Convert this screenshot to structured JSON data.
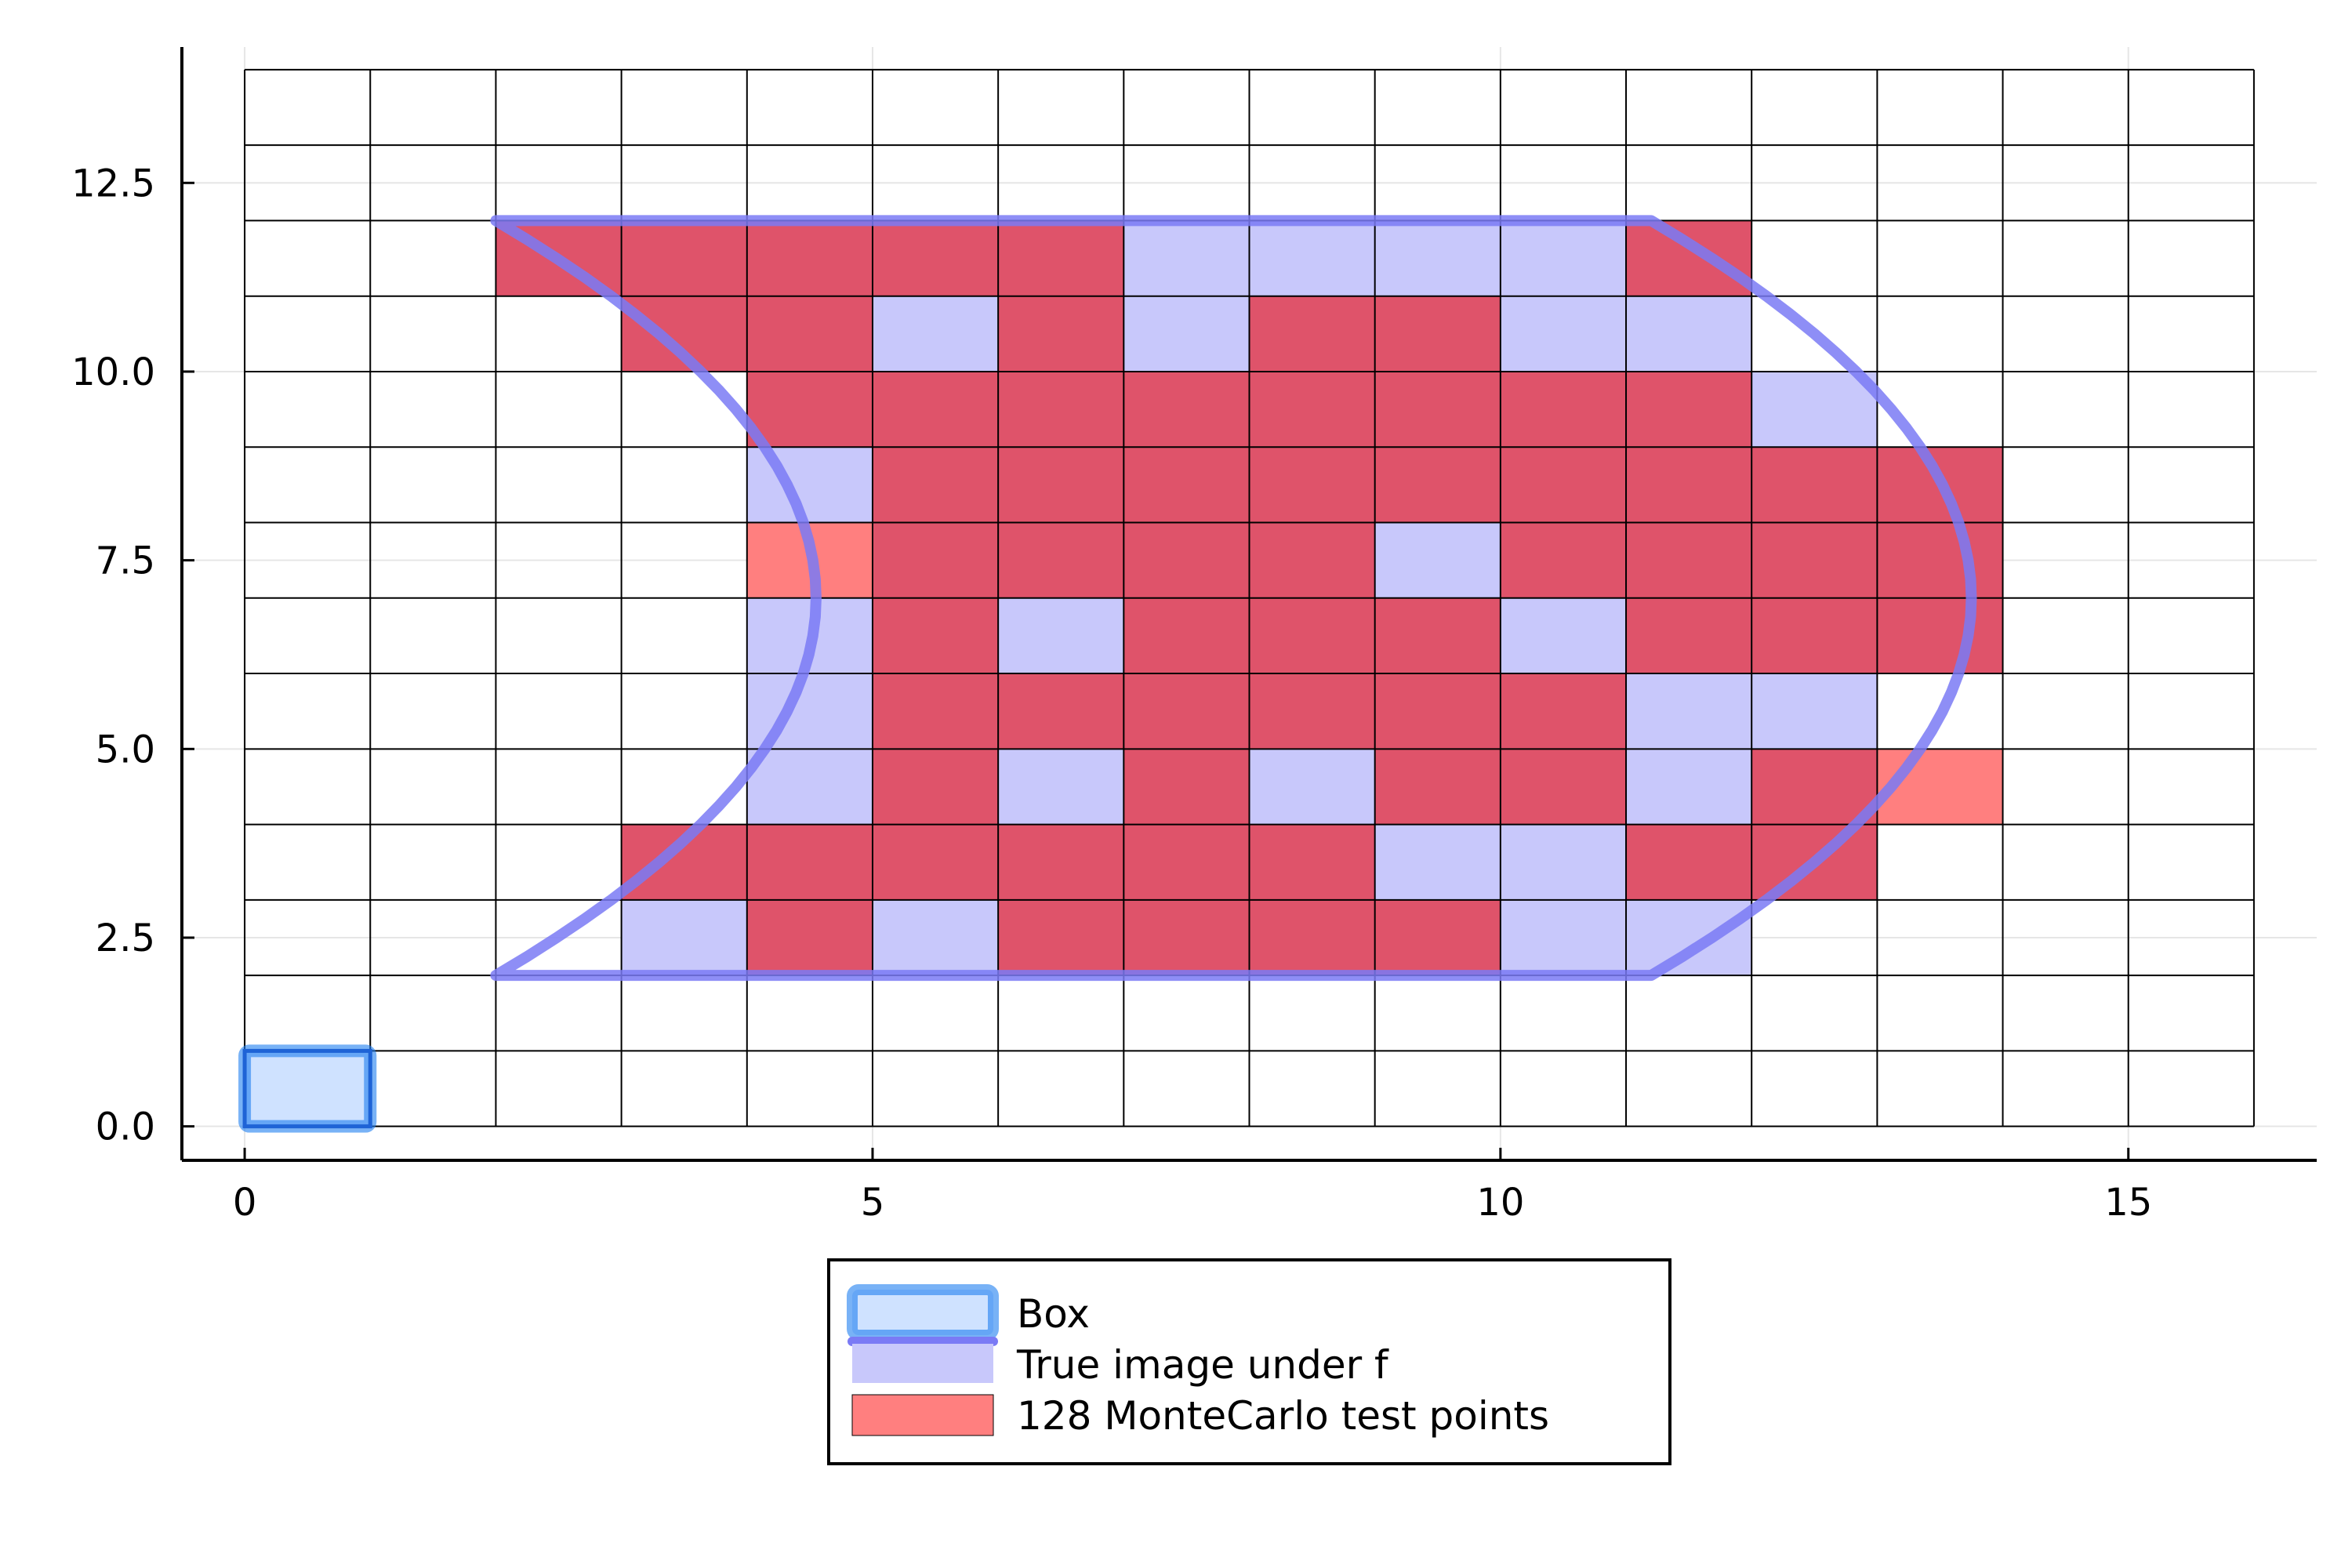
{
  "chart_data": {
    "type": "heatmap",
    "title": "",
    "xlabel": "",
    "ylabel": "",
    "xlim": [
      -0.5,
      16.5
    ],
    "ylim": [
      -0.45,
      14.3
    ],
    "xticks": [
      {
        "value": 0,
        "label": "0"
      },
      {
        "value": 5,
        "label": "5"
      },
      {
        "value": 10,
        "label": "10"
      },
      {
        "value": 15,
        "label": "15"
      }
    ],
    "yticks": [
      {
        "value": 0,
        "label": "0.0"
      },
      {
        "value": 2.5,
        "label": "2.5"
      },
      {
        "value": 5,
        "label": "5.0"
      },
      {
        "value": 7.5,
        "label": "7.5"
      },
      {
        "value": 10,
        "label": "10.0"
      },
      {
        "value": 12.5,
        "label": "12.5"
      }
    ],
    "grid": true,
    "cell_grid": {
      "x_range": [
        0,
        16
      ],
      "y_range": [
        0,
        14
      ],
      "cell_width": 1,
      "cell_height": 1
    },
    "box": {
      "x": [
        0,
        1
      ],
      "y": [
        0,
        1
      ]
    },
    "true_image_boundary": {
      "top_y": 12,
      "bottom_y": 2,
      "top_left_x": 2,
      "top_right_x": 11.2,
      "left_vertex": [
        4.55,
        7
      ],
      "right_vertex": [
        13.75,
        7
      ]
    },
    "series": [
      {
        "name": "Box",
        "color": "#1e7ff0"
      },
      {
        "name": "True image under f",
        "color": "#7a7af5",
        "fill_color": "#c8c8fb",
        "cells": [
          [
            7,
            11
          ],
          [
            8,
            11
          ],
          [
            9,
            11
          ],
          [
            10,
            11
          ],
          [
            5,
            10
          ],
          [
            7,
            10
          ],
          [
            10,
            10
          ],
          [
            11,
            10
          ],
          [
            12,
            9
          ],
          [
            4,
            8
          ],
          [
            9,
            7
          ],
          [
            4,
            6
          ],
          [
            6,
            6
          ],
          [
            10,
            6
          ],
          [
            4,
            5
          ],
          [
            11,
            5
          ],
          [
            12,
            5
          ],
          [
            4,
            4
          ],
          [
            6,
            4
          ],
          [
            8,
            4
          ],
          [
            11,
            4
          ],
          [
            9,
            3
          ],
          [
            10,
            3
          ],
          [
            3,
            2
          ],
          [
            5,
            2
          ],
          [
            10,
            2
          ],
          [
            11,
            2
          ]
        ]
      },
      {
        "name": "128 MonteCarlo test points",
        "color": "#ff7f7f",
        "cells": [
          [
            2,
            11
          ],
          [
            3,
            11
          ],
          [
            4,
            11
          ],
          [
            5,
            11
          ],
          [
            6,
            11
          ],
          [
            11,
            11
          ],
          [
            3,
            10
          ],
          [
            4,
            10
          ],
          [
            6,
            10
          ],
          [
            8,
            10
          ],
          [
            9,
            10
          ],
          [
            4,
            9
          ],
          [
            5,
            9
          ],
          [
            6,
            9
          ],
          [
            7,
            9
          ],
          [
            8,
            9
          ],
          [
            9,
            9
          ],
          [
            10,
            9
          ],
          [
            11,
            9
          ],
          [
            5,
            8
          ],
          [
            6,
            8
          ],
          [
            7,
            8
          ],
          [
            8,
            8
          ],
          [
            9,
            8
          ],
          [
            10,
            8
          ],
          [
            11,
            8
          ],
          [
            12,
            8
          ],
          [
            13,
            8
          ],
          [
            4,
            7
          ],
          [
            5,
            7
          ],
          [
            6,
            7
          ],
          [
            7,
            7
          ],
          [
            8,
            7
          ],
          [
            10,
            7
          ],
          [
            11,
            7
          ],
          [
            12,
            7
          ],
          [
            13,
            7
          ],
          [
            5,
            6
          ],
          [
            7,
            6
          ],
          [
            8,
            6
          ],
          [
            9,
            6
          ],
          [
            11,
            6
          ],
          [
            12,
            6
          ],
          [
            13,
            6
          ],
          [
            5,
            5
          ],
          [
            6,
            5
          ],
          [
            7,
            5
          ],
          [
            8,
            5
          ],
          [
            9,
            5
          ],
          [
            10,
            5
          ],
          [
            5,
            4
          ],
          [
            7,
            4
          ],
          [
            9,
            4
          ],
          [
            10,
            4
          ],
          [
            12,
            4
          ],
          [
            13,
            4
          ],
          [
            3,
            3
          ],
          [
            4,
            3
          ],
          [
            5,
            3
          ],
          [
            6,
            3
          ],
          [
            7,
            3
          ],
          [
            8,
            3
          ],
          [
            11,
            3
          ],
          [
            12,
            3
          ],
          [
            4,
            2
          ],
          [
            6,
            2
          ],
          [
            7,
            2
          ],
          [
            8,
            2
          ],
          [
            9,
            2
          ]
        ]
      }
    ],
    "legend": {
      "placement": "bottom-center",
      "entries": [
        "Box",
        "True image under f",
        "128 MonteCarlo test points"
      ]
    }
  }
}
